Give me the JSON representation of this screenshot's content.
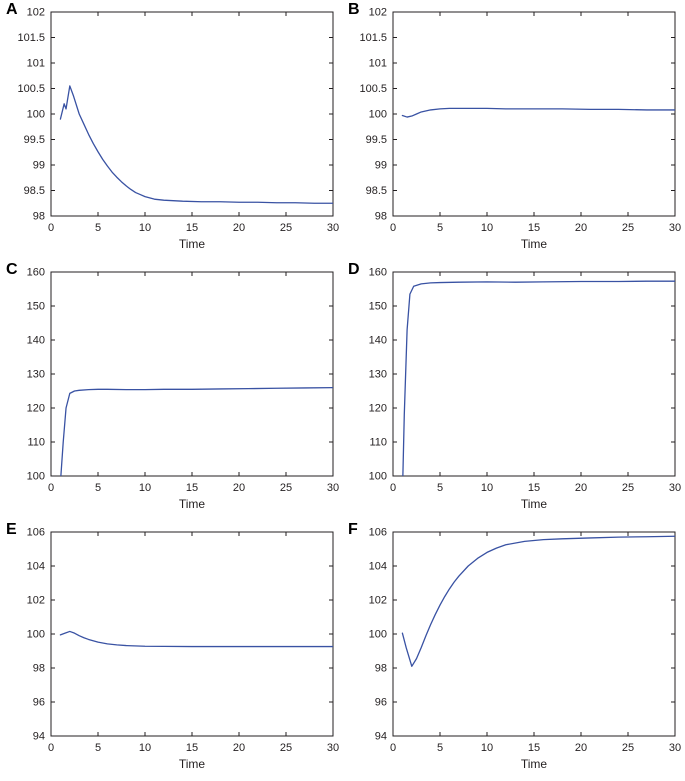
{
  "style": {
    "background": "#ffffff",
    "axis_color": "#231f20",
    "line_color": "#3952a3",
    "tick_label_color": "#231f20",
    "panel_label_color": "#000000"
  },
  "chart_data": [
    {
      "panel_label": "A",
      "type": "line",
      "title": "",
      "xlabel": "Time",
      "ylabel": "",
      "xlim": [
        0,
        30
      ],
      "xticks": [
        0,
        5,
        10,
        15,
        20,
        25,
        30
      ],
      "ylim": [
        98,
        102
      ],
      "yticks": [
        98,
        98.5,
        99,
        99.5,
        100,
        100.5,
        101,
        101.5,
        102
      ],
      "grid": false,
      "legend": "none",
      "x": [
        1,
        1.4,
        1.6,
        2,
        2.4,
        3,
        3.5,
        4,
        4.5,
        5,
        5.5,
        6,
        6.5,
        7,
        7.5,
        8,
        8.5,
        9,
        9.5,
        10,
        11,
        12,
        13,
        14,
        16,
        18,
        20,
        22,
        24,
        26,
        28,
        30
      ],
      "y": [
        99.9,
        100.2,
        100.1,
        100.55,
        100.35,
        100.0,
        99.8,
        99.6,
        99.42,
        99.26,
        99.11,
        98.98,
        98.86,
        98.76,
        98.67,
        98.59,
        98.52,
        98.46,
        98.42,
        98.38,
        98.33,
        98.31,
        98.3,
        98.29,
        98.28,
        98.28,
        98.27,
        98.27,
        98.26,
        98.26,
        98.25,
        98.25
      ]
    },
    {
      "panel_label": "B",
      "type": "line",
      "title": "",
      "xlabel": "Time",
      "ylabel": "",
      "xlim": [
        0,
        30
      ],
      "xticks": [
        0,
        5,
        10,
        15,
        20,
        25,
        30
      ],
      "ylim": [
        98,
        102
      ],
      "yticks": [
        98,
        98.5,
        99,
        99.5,
        100,
        100.5,
        101,
        101.5,
        102
      ],
      "grid": false,
      "legend": "none",
      "x": [
        1,
        1.5,
        2,
        2.5,
        3,
        4,
        5,
        6,
        8,
        10,
        12,
        15,
        18,
        21,
        24,
        27,
        30
      ],
      "y": [
        99.97,
        99.94,
        99.96,
        100.0,
        100.04,
        100.08,
        100.1,
        100.11,
        100.11,
        100.11,
        100.1,
        100.1,
        100.1,
        100.09,
        100.09,
        100.08,
        100.08
      ]
    },
    {
      "panel_label": "C",
      "type": "line",
      "title": "",
      "xlabel": "Time",
      "ylabel": "",
      "xlim": [
        0,
        30
      ],
      "xticks": [
        0,
        5,
        10,
        15,
        20,
        25,
        30
      ],
      "ylim": [
        100,
        160
      ],
      "yticks": [
        100,
        110,
        120,
        130,
        140,
        150,
        160
      ],
      "grid": false,
      "legend": "none",
      "x": [
        1.05,
        1.3,
        1.6,
        2,
        2.5,
        3,
        4,
        5,
        6,
        8,
        10,
        12,
        15,
        18,
        21,
        24,
        27,
        30
      ],
      "y": [
        100,
        110,
        120,
        124.3,
        125.0,
        125.2,
        125.4,
        125.5,
        125.5,
        125.4,
        125.4,
        125.5,
        125.5,
        125.6,
        125.7,
        125.8,
        125.9,
        126.0
      ]
    },
    {
      "panel_label": "D",
      "type": "line",
      "title": "",
      "xlabel": "Time",
      "ylabel": "",
      "xlim": [
        0,
        30
      ],
      "xticks": [
        0,
        5,
        10,
        15,
        20,
        25,
        30
      ],
      "ylim": [
        100,
        160
      ],
      "yticks": [
        100,
        110,
        120,
        130,
        140,
        150,
        160
      ],
      "grid": false,
      "legend": "none",
      "x": [
        1.05,
        1.2,
        1.5,
        1.8,
        2.2,
        3,
        4,
        5,
        7,
        10,
        13,
        16,
        20,
        24,
        27,
        30
      ],
      "y": [
        100,
        118,
        143,
        153.5,
        155.8,
        156.5,
        156.8,
        156.9,
        157.0,
        157.1,
        157.0,
        157.1,
        157.2,
        157.2,
        157.3,
        157.3
      ]
    },
    {
      "panel_label": "E",
      "type": "line",
      "title": "",
      "xlabel": "Time",
      "ylabel": "",
      "xlim": [
        0,
        30
      ],
      "xticks": [
        0,
        5,
        10,
        15,
        20,
        25,
        30
      ],
      "ylim": [
        94,
        106
      ],
      "yticks": [
        94,
        96,
        98,
        100,
        102,
        104,
        106
      ],
      "grid": false,
      "legend": "none",
      "x": [
        1,
        1.5,
        2,
        2.5,
        3,
        3.5,
        4,
        5,
        6,
        7,
        8,
        10,
        12,
        15,
        18,
        21,
        24,
        27,
        30
      ],
      "y": [
        99.95,
        100.05,
        100.15,
        100.05,
        99.9,
        99.78,
        99.68,
        99.52,
        99.42,
        99.36,
        99.32,
        99.28,
        99.27,
        99.26,
        99.26,
        99.26,
        99.26,
        99.26,
        99.26
      ]
    },
    {
      "panel_label": "F",
      "type": "line",
      "title": "",
      "xlabel": "Time",
      "ylabel": "",
      "xlim": [
        0,
        30
      ],
      "xticks": [
        0,
        5,
        10,
        15,
        20,
        25,
        30
      ],
      "ylim": [
        94,
        106
      ],
      "yticks": [
        94,
        96,
        98,
        100,
        102,
        104,
        106
      ],
      "grid": false,
      "legend": "none",
      "x": [
        1,
        1.4,
        2,
        2.5,
        3,
        3.5,
        4,
        4.5,
        5,
        5.5,
        6,
        6.5,
        7,
        8,
        9,
        10,
        11,
        12,
        14,
        16,
        18,
        21,
        24,
        27,
        30
      ],
      "y": [
        100.05,
        99.2,
        98.1,
        98.55,
        99.2,
        99.9,
        100.55,
        101.15,
        101.7,
        102.2,
        102.65,
        103.05,
        103.4,
        104.0,
        104.45,
        104.8,
        105.05,
        105.25,
        105.45,
        105.55,
        105.6,
        105.65,
        105.7,
        105.72,
        105.75
      ]
    }
  ]
}
